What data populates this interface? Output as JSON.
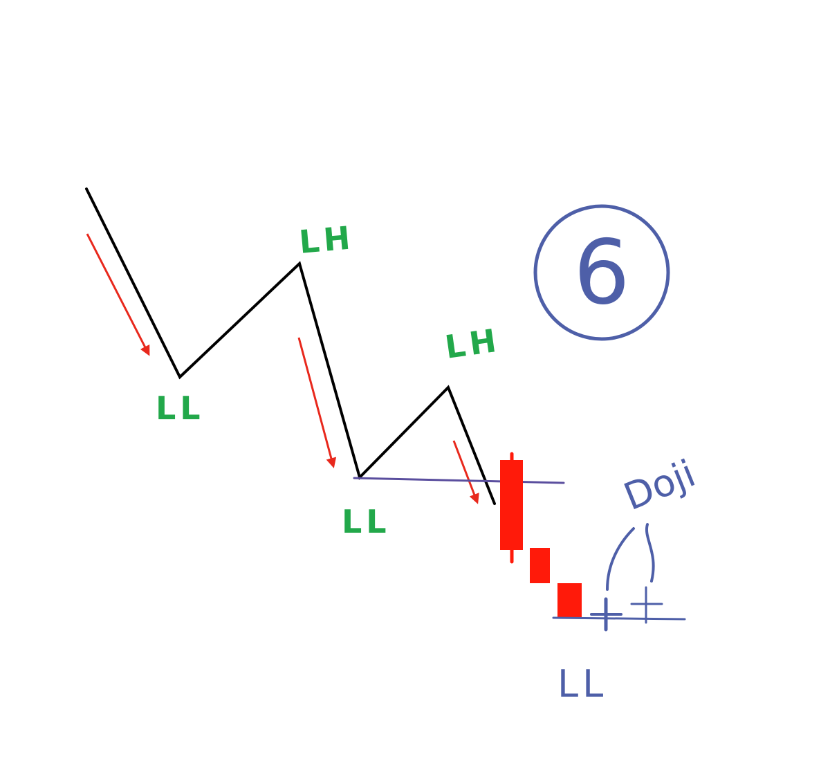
{
  "diagram": {
    "step_number": "6",
    "labels": {
      "first_low": "LL",
      "first_high": "LH",
      "second_low": "LL",
      "second_high": "LH",
      "final_low": "LL",
      "doji": "Doji"
    },
    "colors": {
      "price_line": "#000000",
      "trend_arrows": "#e8281c",
      "swing_labels": "#22a84a",
      "bearish_candles": "#ff1a0a",
      "support_line": "#5a4e9e",
      "annotations": "#4e5fa8"
    }
  }
}
